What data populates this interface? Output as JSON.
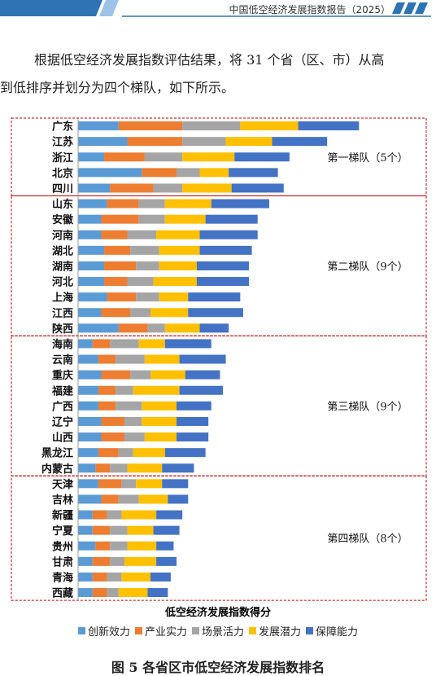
{
  "header": {
    "report_title": "中国低空经济发展指数报告（2025）"
  },
  "paragraph": {
    "line1": "根据低空经济发展指数评估结果，将 31 个省（区、市）从高",
    "line2": "到低排序并划分为四个梯队，如下所示。"
  },
  "caption": "图 5  各省区市低空经济发展指数排名",
  "colors": {
    "series": [
      "#5b9bd5",
      "#ed7d31",
      "#a5a5a5",
      "#ffc000",
      "#4472c4"
    ],
    "tier_border": "#c00000",
    "accent": "#2e74b5"
  },
  "chart_data": {
    "type": "bar",
    "orientation": "horizontal",
    "stacked": true,
    "xlabel": "低空经济发展指数得分",
    "ylabel": "",
    "xlim": [
      0,
      10
    ],
    "grid": false,
    "legend_position": "bottom",
    "categories": [
      "广东",
      "江苏",
      "浙江",
      "北京",
      "四川",
      "山东",
      "安徽",
      "河南",
      "湖北",
      "湖南",
      "河北",
      "上海",
      "江西",
      "陕西",
      "海南",
      "云南",
      "重庆",
      "福建",
      "广西",
      "辽宁",
      "山西",
      "黑龙江",
      "内蒙古",
      "天津",
      "吉林",
      "新疆",
      "宁夏",
      "贵州",
      "甘肃",
      "青海",
      "西藏"
    ],
    "series": [
      {
        "name": "创新效力",
        "values": [
          1.4,
          1.7,
          0.9,
          2.2,
          1.1,
          1.0,
          0.8,
          0.8,
          0.9,
          0.9,
          0.9,
          1.0,
          0.8,
          1.4,
          0.5,
          0.7,
          0.8,
          0.7,
          0.7,
          0.8,
          0.8,
          0.7,
          0.6,
          0.7,
          0.8,
          0.5,
          0.5,
          0.6,
          0.5,
          0.5,
          0.5
        ]
      },
      {
        "name": "产业实力",
        "values": [
          2.2,
          1.9,
          1.4,
          1.2,
          1.5,
          1.1,
          1.3,
          0.9,
          0.9,
          1.1,
          0.8,
          1.0,
          1.0,
          1.0,
          0.6,
          0.6,
          1.0,
          0.6,
          0.6,
          0.8,
          0.8,
          0.7,
          0.5,
          0.8,
          0.6,
          0.5,
          0.6,
          0.5,
          0.6,
          0.5,
          0.5
        ]
      },
      {
        "name": "场景活力",
        "values": [
          2.0,
          1.5,
          1.3,
          0.8,
          1.0,
          0.9,
          0.9,
          1.0,
          1.0,
          0.8,
          0.9,
          0.8,
          0.7,
          0.6,
          1.0,
          1.0,
          0.7,
          0.6,
          0.9,
          0.6,
          0.7,
          0.5,
          0.6,
          0.5,
          0.7,
          0.5,
          0.6,
          0.6,
          0.5,
          0.5,
          0.4
        ]
      },
      {
        "name": "发展潜力",
        "values": [
          2.0,
          1.6,
          1.8,
          1.0,
          1.7,
          1.6,
          1.4,
          1.5,
          1.4,
          1.3,
          1.5,
          1.0,
          1.3,
          1.2,
          0.9,
          1.2,
          1.2,
          1.6,
          1.2,
          1.2,
          1.1,
          1.1,
          1.2,
          0.9,
          1.0,
          1.2,
          0.9,
          1.0,
          1.1,
          1.0,
          1.0
        ]
      },
      {
        "name": "保障能力",
        "values": [
          2.1,
          1.9,
          1.9,
          1.7,
          1.8,
          2.0,
          1.8,
          2.0,
          1.8,
          1.8,
          1.8,
          1.8,
          1.9,
          1.0,
          1.6,
          1.6,
          1.2,
          1.5,
          1.2,
          1.1,
          1.1,
          1.4,
          1.1,
          0.9,
          0.7,
          0.9,
          0.9,
          0.6,
          0.7,
          0.7,
          0.7
        ]
      }
    ],
    "annotations": [
      "第一梯队（5个）",
      "第二梯队（9个）",
      "第三梯队（9个）",
      "第四梯队（8个）"
    ],
    "tiers": [
      {
        "label": "第一梯队（5个）",
        "count": 5
      },
      {
        "label": "第二梯队（9个）",
        "count": 9
      },
      {
        "label": "第三梯队（9个）",
        "count": 9
      },
      {
        "label": "第四梯队（8个）",
        "count": 8
      }
    ]
  }
}
